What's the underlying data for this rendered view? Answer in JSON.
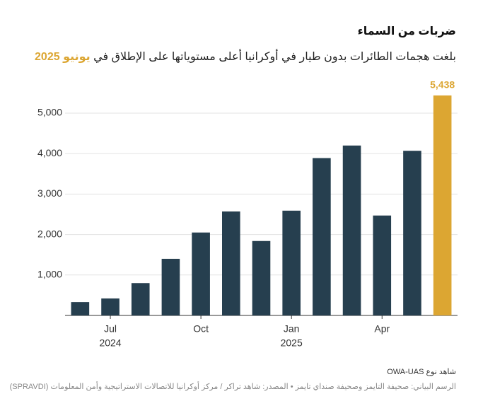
{
  "chart_data": {
    "type": "bar",
    "title": "ضربات من السماء",
    "subtitle": "بلغت هجمات الطائرات بدون طيار في أوكرانيا أعلى مستوياتها على الإطلاق في",
    "subtitle_highlight": "يونيو 2025",
    "categories": [
      null,
      "Jul",
      null,
      null,
      "Oct",
      null,
      null,
      "Jan",
      null,
      null,
      "Apr",
      null,
      null
    ],
    "category_years": [
      null,
      "2024",
      null,
      null,
      null,
      null,
      null,
      "2025",
      null,
      null,
      null,
      null,
      null
    ],
    "values": [
      330,
      420,
      800,
      1400,
      2050,
      2570,
      1840,
      2590,
      3890,
      4200,
      2470,
      4070,
      5438
    ],
    "value_labels": [
      null,
      null,
      null,
      null,
      null,
      null,
      null,
      null,
      null,
      null,
      null,
      null,
      "5,438"
    ],
    "color": "#263f4f",
    "highlight": {
      "index": 12,
      "color": "#dca632"
    },
    "ylim": [
      0,
      5500
    ],
    "yticks": [
      {
        "value": 1000,
        "label": "1,000"
      },
      {
        "value": 2000,
        "label": "2,000"
      },
      {
        "value": 3000,
        "label": "3,000"
      },
      {
        "value": 4000,
        "label": "4,000"
      },
      {
        "value": 5000,
        "label": "5,000"
      }
    ],
    "grid": true,
    "note": "شاهد نوع OWA-UAS",
    "source": "الرسم البياني: صحيفة التايمز وصحيفة صنداي تايمز • المصدر: شاهد تراكر / مركز أوكرانيا للاتصالات الاستراتيجية وأمن المعلومات (SPRAVDI)"
  }
}
